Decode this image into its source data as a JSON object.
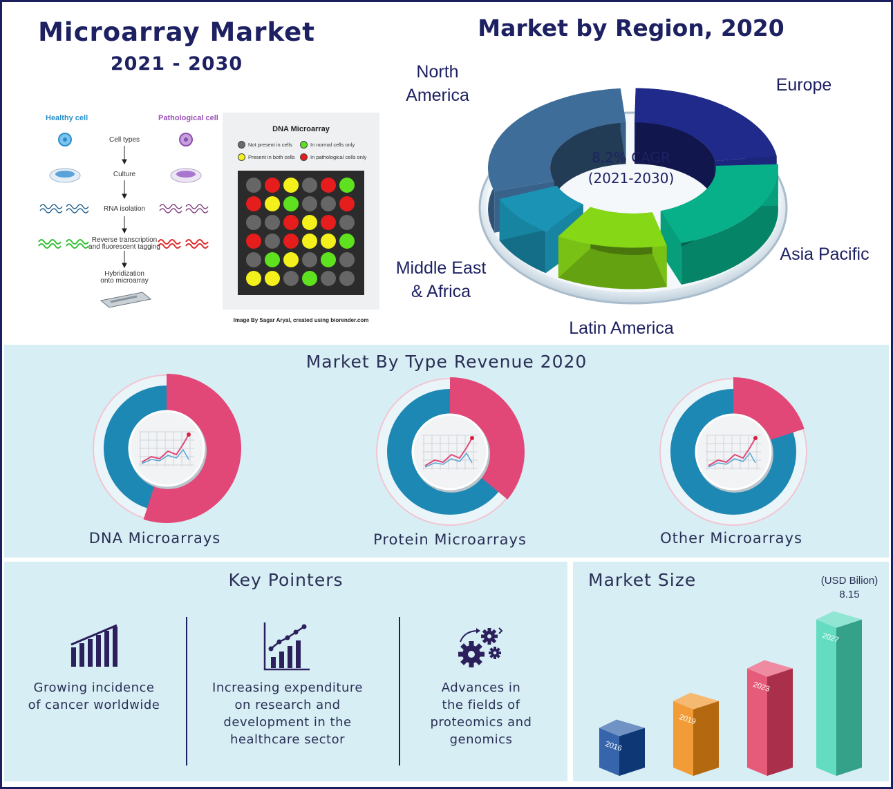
{
  "header": {
    "title": "Microarray Market",
    "years": "2021 - 2030"
  },
  "diagram": {
    "healthy_label": "Healthy cell",
    "pathological_label": "Pathological cell",
    "steps": [
      "Cell types",
      "Culture",
      "RNA isolation",
      "Reverse transcription",
      "and fluorescent tagging",
      "Hybridization",
      "onto microarray"
    ],
    "microarray_title": "DNA Microarray",
    "legend": [
      "Not present in cells",
      "In normal cells only",
      "Present in both cells",
      "In pathological cells only"
    ],
    "credit": "Image By Sagar Aryal, created using biorender.com"
  },
  "region": {
    "title": "Market by Region, 2020",
    "cagr_line1": "8.2% CAGR",
    "cagr_line2": "(2021-2030)",
    "labels": {
      "north_america_1": "North",
      "north_america_2": "America",
      "europe": "Europe",
      "asia_pacific": "Asia Pacific",
      "latin_america": "Latin America",
      "mea_1": "Middle East",
      "mea_2": "& Africa"
    }
  },
  "type_section": {
    "title": "Market By Type Revenue 2020",
    "items": [
      {
        "label": "DNA Microarrays"
      },
      {
        "label": "Protein Microarrays"
      },
      {
        "label": "Other Microarrays"
      }
    ]
  },
  "key_pointers": {
    "title": "Key Pointers",
    "items": [
      {
        "icon": "bar-chart-icon",
        "lines": [
          "Growing incidence",
          "of cancer worldwide"
        ]
      },
      {
        "icon": "growth-chart-icon",
        "lines": [
          "Increasing expenditure",
          "on research and",
          "development in the",
          "healthcare sector"
        ]
      },
      {
        "icon": "gears-icon",
        "lines": [
          "Advances in",
          "the fields of",
          "proteomics and",
          "genomics"
        ]
      }
    ]
  },
  "market_size": {
    "title": "Market Size",
    "unit": "(USD Bilion)",
    "value_label": "8.15"
  },
  "chart_data": [
    {
      "type": "pie",
      "title": "Market by Region, 2020",
      "categories": [
        "North America",
        "Europe",
        "Asia Pacific",
        "Latin America",
        "Middle East & Africa"
      ],
      "values": [
        30,
        24,
        22,
        14,
        10
      ],
      "colors": [
        "#3f6d9a",
        "#1f2a8a",
        "#08b089",
        "#86d817",
        "#1a93b4"
      ]
    },
    {
      "type": "pie",
      "title": "Market By Type Revenue 2020",
      "categories": [
        "DNA Microarrays"
      ],
      "values": [
        55
      ],
      "colors": [
        "#e14877",
        "#1e88b4"
      ]
    },
    {
      "type": "pie",
      "categories": [
        "Protein Microarrays"
      ],
      "values": [
        36
      ],
      "colors": [
        "#e14877",
        "#1e88b4"
      ]
    },
    {
      "type": "pie",
      "categories": [
        "Other Microarrays"
      ],
      "values": [
        20
      ],
      "colors": [
        "#e14877",
        "#1e88b4"
      ]
    },
    {
      "type": "bar",
      "title": "Market Size",
      "ylabel": "(USD Bilion)",
      "categories": [
        "2016",
        "2019",
        "2023",
        "2027"
      ],
      "values": [
        2.5,
        3.9,
        5.6,
        8.15
      ],
      "colors": [
        "#124a9c",
        "#f08a14",
        "#e23e63",
        "#47d6b6"
      ]
    }
  ]
}
